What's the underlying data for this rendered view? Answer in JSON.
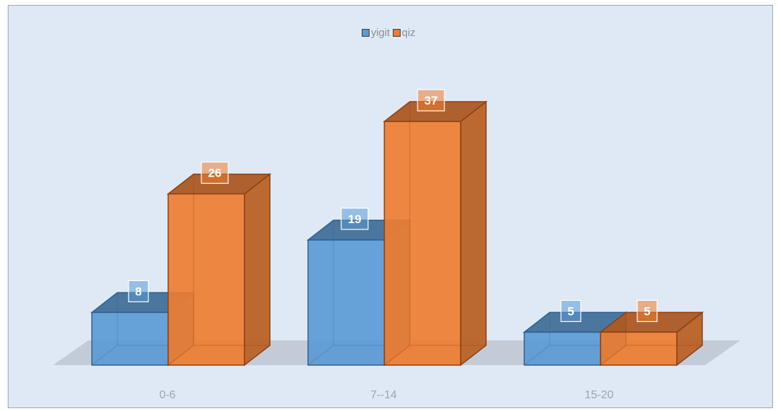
{
  "chart_data": {
    "type": "bar",
    "subtype": "3d-clustered-column",
    "categories": [
      "0-6",
      "7--14",
      "15-20"
    ],
    "series": [
      {
        "name": "yigit",
        "values": [
          8,
          19,
          5
        ],
        "color": "#5b9bd5",
        "edge": "#2e5f91"
      },
      {
        "name": "qiz",
        "values": [
          26,
          37,
          5
        ],
        "color": "#ed7d31",
        "edge": "#8e3f10"
      }
    ],
    "title": "",
    "xlabel": "",
    "ylabel": "",
    "ylim": [
      0,
      37
    ],
    "grid": false,
    "legend_position": "top-center",
    "background": "#dfe9f5"
  }
}
